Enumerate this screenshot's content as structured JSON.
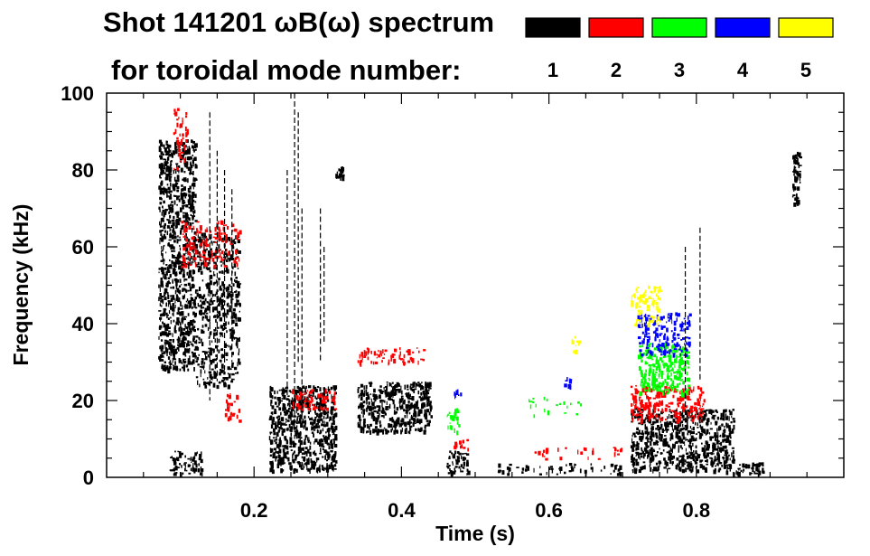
{
  "chart_data": {
    "type": "heatmap",
    "title_line1": "Shot 141201 ωB(ω) spectrum",
    "title_line2": "for toroidal mode number:",
    "xlabel": "Time (s)",
    "ylabel": "Frequency (kHz)",
    "xlim": [
      0,
      1.0
    ],
    "ylim": [
      0,
      100
    ],
    "x_ticks": [
      0.2,
      0.4,
      0.6,
      0.8
    ],
    "x_tick_labels": [
      "0.2",
      "0.4",
      "0.6",
      "0.8"
    ],
    "y_ticks": [
      0,
      20,
      40,
      60,
      80,
      100
    ],
    "y_tick_labels": [
      "0",
      "20",
      "40",
      "60",
      "80",
      "100"
    ],
    "legend": [
      {
        "label": "1",
        "color": "#000000"
      },
      {
        "label": "2",
        "color": "#ff0000"
      },
      {
        "label": "3",
        "color": "#00ff00"
      },
      {
        "label": "4",
        "color": "#0000ff"
      },
      {
        "label": "5",
        "color": "#ffff00"
      }
    ],
    "features": [
      {
        "mode": 1,
        "t": [
          0.07,
          0.12
        ],
        "f": [
          28,
          88
        ],
        "density": 0.55
      },
      {
        "mode": 1,
        "t": [
          0.12,
          0.18
        ],
        "f": [
          24,
          64
        ],
        "density": 0.35
      },
      {
        "mode": 1,
        "t": [
          0.085,
          0.13
        ],
        "f": [
          1,
          7
        ],
        "density": 0.45
      },
      {
        "mode": 1,
        "t": [
          0.22,
          0.31
        ],
        "f": [
          2,
          24
        ],
        "density": 0.6
      },
      {
        "mode": 1,
        "t": [
          0.34,
          0.44
        ],
        "f": [
          12,
          25
        ],
        "density": 0.6
      },
      {
        "mode": 1,
        "t": [
          0.46,
          0.49
        ],
        "f": [
          1,
          7
        ],
        "density": 0.5
      },
      {
        "mode": 1,
        "t": [
          0.53,
          0.7
        ],
        "f": [
          1,
          4
        ],
        "density": 0.18
      },
      {
        "mode": 1,
        "t": [
          0.71,
          0.85
        ],
        "f": [
          2,
          18
        ],
        "density": 0.55
      },
      {
        "mode": 1,
        "t": [
          0.84,
          0.89
        ],
        "f": [
          1,
          4
        ],
        "density": 0.5
      },
      {
        "mode": 1,
        "t": [
          0.93,
          0.94
        ],
        "f": [
          70,
          85
        ],
        "density": 0.8
      },
      {
        "mode": 1,
        "t": [
          0.31,
          0.32
        ],
        "f": [
          78,
          81
        ],
        "density": 0.9
      },
      {
        "mode": 2,
        "t": [
          0.09,
          0.11
        ],
        "f": [
          80,
          97
        ],
        "density": 0.2
      },
      {
        "mode": 2,
        "t": [
          0.1,
          0.18
        ],
        "f": [
          55,
          67
        ],
        "density": 0.25
      },
      {
        "mode": 2,
        "t": [
          0.16,
          0.18
        ],
        "f": [
          15,
          22
        ],
        "density": 0.3
      },
      {
        "mode": 2,
        "t": [
          0.25,
          0.31
        ],
        "f": [
          18,
          23
        ],
        "density": 0.35
      },
      {
        "mode": 2,
        "t": [
          0.34,
          0.43
        ],
        "f": [
          30,
          34
        ],
        "density": 0.3
      },
      {
        "mode": 2,
        "t": [
          0.47,
          0.49
        ],
        "f": [
          7,
          10
        ],
        "density": 0.3
      },
      {
        "mode": 2,
        "t": [
          0.58,
          0.7
        ],
        "f": [
          5,
          8
        ],
        "density": 0.12
      },
      {
        "mode": 2,
        "t": [
          0.71,
          0.81
        ],
        "f": [
          15,
          24
        ],
        "density": 0.45
      },
      {
        "mode": 3,
        "t": [
          0.46,
          0.48
        ],
        "f": [
          12,
          18
        ],
        "density": 0.35
      },
      {
        "mode": 3,
        "t": [
          0.57,
          0.65
        ],
        "f": [
          16,
          21
        ],
        "density": 0.08
      },
      {
        "mode": 3,
        "t": [
          0.72,
          0.79
        ],
        "f": [
          22,
          35
        ],
        "density": 0.5
      },
      {
        "mode": 4,
        "t": [
          0.62,
          0.63
        ],
        "f": [
          24,
          27
        ],
        "density": 0.4
      },
      {
        "mode": 4,
        "t": [
          0.72,
          0.79
        ],
        "f": [
          32,
          43
        ],
        "density": 0.35
      },
      {
        "mode": 4,
        "t": [
          0.47,
          0.48
        ],
        "f": [
          20,
          23
        ],
        "density": 0.3
      },
      {
        "mode": 5,
        "t": [
          0.63,
          0.64
        ],
        "f": [
          33,
          37
        ],
        "density": 0.3
      },
      {
        "mode": 5,
        "t": [
          0.71,
          0.75
        ],
        "f": [
          40,
          50
        ],
        "density": 0.35
      }
    ]
  }
}
